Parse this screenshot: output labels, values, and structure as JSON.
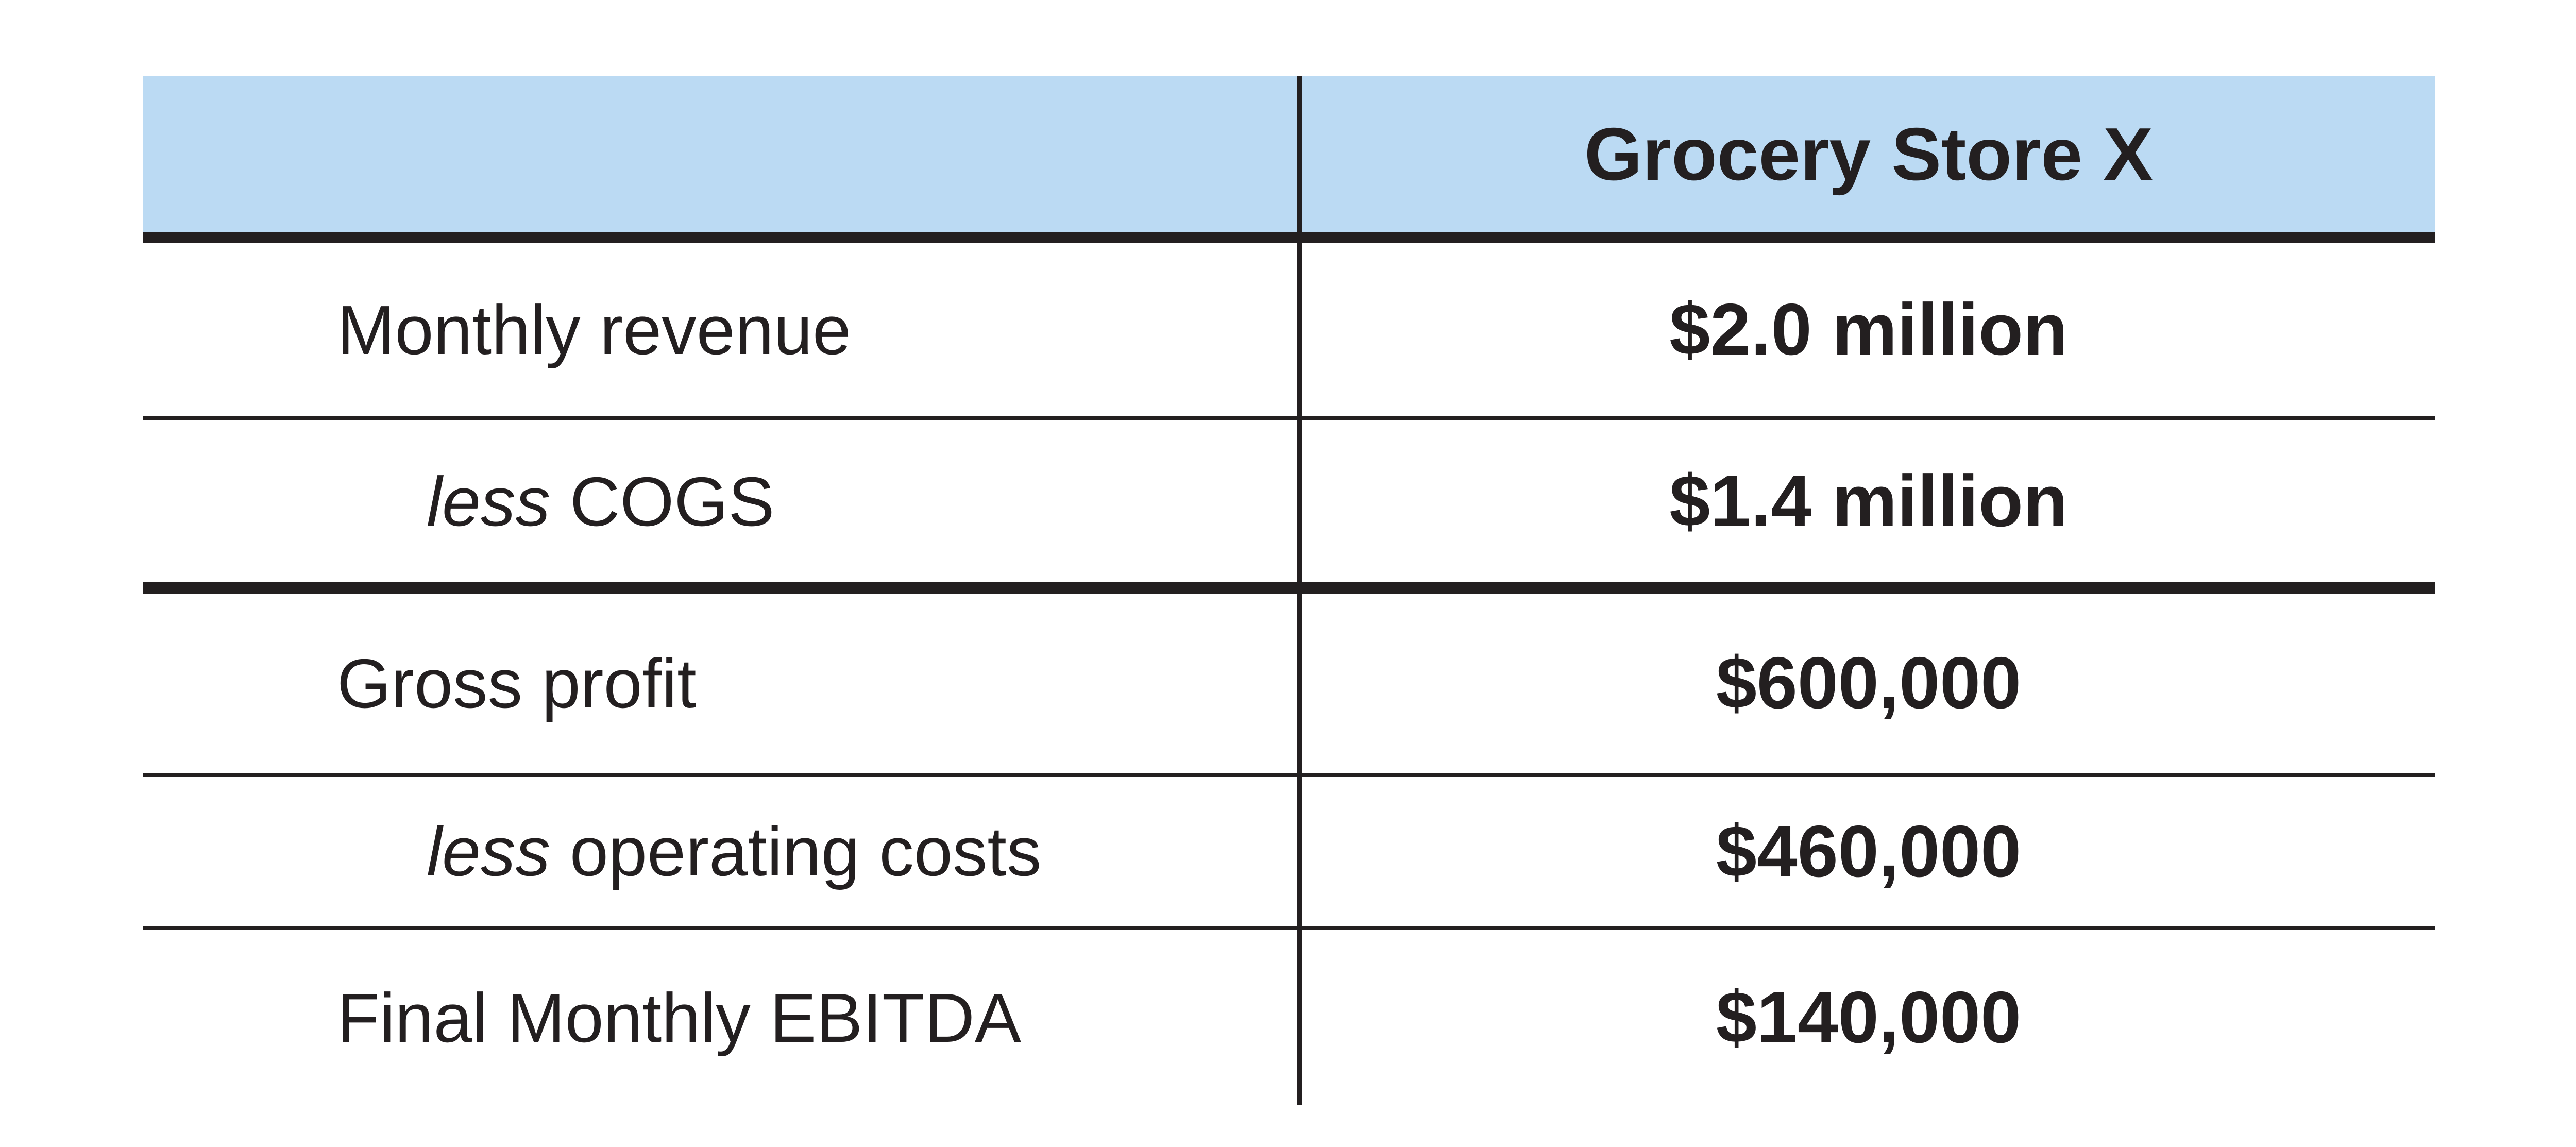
{
  "colors": {
    "background": "#ffffff",
    "header_bg": "#bbdaf3",
    "line": "#231f20",
    "text": "#231f20"
  },
  "table": {
    "header": {
      "label_col": "",
      "company_col": "Grocery Store X"
    },
    "rows": [
      {
        "label_italic": "",
        "label": "Monthly revenue",
        "value": "$2.0 million"
      },
      {
        "label_italic": "less",
        "label": "COGS",
        "value": "$1.4 million"
      },
      {
        "label_italic": "",
        "label": "Gross profit",
        "value": "$600,000"
      },
      {
        "label_italic": "less",
        "label": "operating costs",
        "value": "$460,000"
      },
      {
        "label_italic": "",
        "label": "Final Monthly EBITDA",
        "value": "$140,000"
      }
    ]
  },
  "chart_data": {
    "type": "table",
    "title": "",
    "columns": [
      "",
      "Grocery Store X"
    ],
    "rows": [
      [
        "Monthly revenue",
        "$2.0 million"
      ],
      [
        "less COGS",
        "$1.4 million"
      ],
      [
        "Gross profit",
        "$600,000"
      ],
      [
        "less operating costs",
        "$460,000"
      ],
      [
        "Final Monthly EBITDA",
        "$140,000"
      ]
    ],
    "layout_hints": {
      "thick_rule_below_rows": [
        "header",
        "less COGS"
      ],
      "italic_words": [
        "less"
      ],
      "value_alignment": "center",
      "header_fill": "#bbdaf3"
    }
  }
}
